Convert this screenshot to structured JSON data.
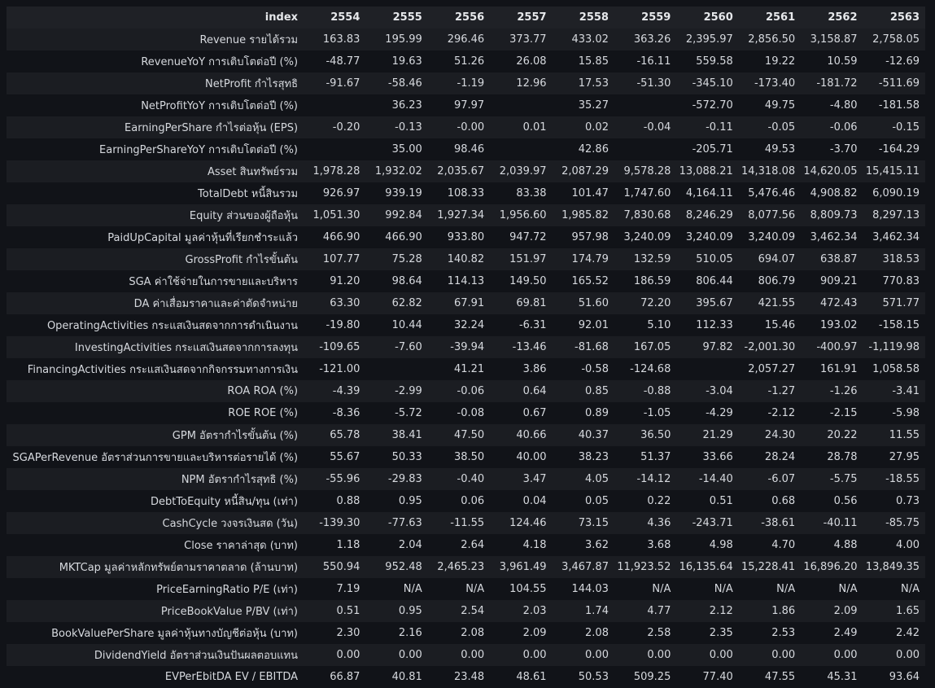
{
  "header": [
    "index",
    "2554",
    "2555",
    "2556",
    "2557",
    "2558",
    "2559",
    "2560",
    "2561",
    "2562",
    "2563"
  ],
  "rows": [
    {
      "label": "Revenue รายได้รวม",
      "values": [
        "163.83",
        "195.99",
        "296.46",
        "373.77",
        "433.02",
        "363.26",
        "2,395.97",
        "2,856.50",
        "3,158.87",
        "2,758.05"
      ]
    },
    {
      "label": "RevenueYoY การเติบโตต่อปี (%)",
      "values": [
        "-48.77",
        "19.63",
        "51.26",
        "26.08",
        "15.85",
        "-16.11",
        "559.58",
        "19.22",
        "10.59",
        "-12.69"
      ]
    },
    {
      "label": "NetProfit กำไรสุทธิ",
      "values": [
        "-91.67",
        "-58.46",
        "-1.19",
        "12.96",
        "17.53",
        "-51.30",
        "-345.10",
        "-173.40",
        "-181.72",
        "-511.69"
      ]
    },
    {
      "label": "NetProfitYoY การเติบโตต่อปี (%)",
      "values": [
        "",
        "36.23",
        "97.97",
        "",
        "35.27",
        "",
        "-572.70",
        "49.75",
        "-4.80",
        "-181.58"
      ]
    },
    {
      "label": "EarningPerShare กำไรต่อหุ้น (EPS)",
      "values": [
        "-0.20",
        "-0.13",
        "-0.00",
        "0.01",
        "0.02",
        "-0.04",
        "-0.11",
        "-0.05",
        "-0.06",
        "-0.15"
      ]
    },
    {
      "label": "EarningPerShareYoY การเติบโตต่อปี (%)",
      "values": [
        "",
        "35.00",
        "98.46",
        "",
        "42.86",
        "",
        "-205.71",
        "49.53",
        "-3.70",
        "-164.29"
      ]
    },
    {
      "label": "Asset สินทรัพย์รวม",
      "values": [
        "1,978.28",
        "1,932.02",
        "2,035.67",
        "2,039.97",
        "2,087.29",
        "9,578.28",
        "13,088.21",
        "14,318.08",
        "14,620.05",
        "15,415.11"
      ]
    },
    {
      "label": "TotalDebt หนี้สินรวม",
      "values": [
        "926.97",
        "939.19",
        "108.33",
        "83.38",
        "101.47",
        "1,747.60",
        "4,164.11",
        "5,476.46",
        "4,908.82",
        "6,090.19"
      ]
    },
    {
      "label": "Equity ส่วนของผู้ถือหุ้น",
      "values": [
        "1,051.30",
        "992.84",
        "1,927.34",
        "1,956.60",
        "1,985.82",
        "7,830.68",
        "8,246.29",
        "8,077.56",
        "8,809.73",
        "8,297.13"
      ]
    },
    {
      "label": "PaidUpCapital มูลค่าหุ้นที่เรียกชำระแล้ว",
      "values": [
        "466.90",
        "466.90",
        "933.80",
        "947.72",
        "957.98",
        "3,240.09",
        "3,240.09",
        "3,240.09",
        "3,462.34",
        "3,462.34"
      ]
    },
    {
      "label": "GrossProfit กำไรขั้นต้น",
      "values": [
        "107.77",
        "75.28",
        "140.82",
        "151.97",
        "174.79",
        "132.59",
        "510.05",
        "694.07",
        "638.87",
        "318.53"
      ]
    },
    {
      "label": "SGA ค่าใช้จ่ายในการขายและบริหาร",
      "values": [
        "91.20",
        "98.64",
        "114.13",
        "149.50",
        "165.52",
        "186.59",
        "806.44",
        "806.79",
        "909.21",
        "770.83"
      ]
    },
    {
      "label": "DA ค่าเสื่อมราคาและค่าตัดจำหน่าย",
      "values": [
        "63.30",
        "62.82",
        "67.91",
        "69.81",
        "51.60",
        "72.20",
        "395.67",
        "421.55",
        "472.43",
        "571.77"
      ]
    },
    {
      "label": "OperatingActivities กระแสเงินสดจากการดำเนินงาน",
      "values": [
        "-19.80",
        "10.44",
        "32.24",
        "-6.31",
        "92.01",
        "5.10",
        "112.33",
        "15.46",
        "193.02",
        "-158.15"
      ]
    },
    {
      "label": "InvestingActivities กระแสเงินสดจากการลงทุน",
      "values": [
        "-109.65",
        "-7.60",
        "-39.94",
        "-13.46",
        "-81.68",
        "167.05",
        "97.82",
        "-2,001.30",
        "-400.97",
        "-1,119.98"
      ]
    },
    {
      "label": "FinancingActivities กระแสเงินสดจากกิจกรรมทางการเงิน",
      "values": [
        "-121.00",
        "",
        "41.21",
        "3.86",
        "-0.58",
        "-124.68",
        "",
        "2,057.27",
        "161.91",
        "1,058.58"
      ]
    },
    {
      "label": "ROA ROA (%)",
      "values": [
        "-4.39",
        "-2.99",
        "-0.06",
        "0.64",
        "0.85",
        "-0.88",
        "-3.04",
        "-1.27",
        "-1.26",
        "-3.41"
      ]
    },
    {
      "label": "ROE ROE (%)",
      "values": [
        "-8.36",
        "-5.72",
        "-0.08",
        "0.67",
        "0.89",
        "-1.05",
        "-4.29",
        "-2.12",
        "-2.15",
        "-5.98"
      ]
    },
    {
      "label": "GPM อัตรากำไรขั้นต้น (%)",
      "values": [
        "65.78",
        "38.41",
        "47.50",
        "40.66",
        "40.37",
        "36.50",
        "21.29",
        "24.30",
        "20.22",
        "11.55"
      ]
    },
    {
      "label": "SGAPerRevenue อัตราส่วนการขายและบริหารต่อรายได้ (%)",
      "values": [
        "55.67",
        "50.33",
        "38.50",
        "40.00",
        "38.23",
        "51.37",
        "33.66",
        "28.24",
        "28.78",
        "27.95"
      ]
    },
    {
      "label": "NPM อัตรากำไรสุทธิ (%)",
      "values": [
        "-55.96",
        "-29.83",
        "-0.40",
        "3.47",
        "4.05",
        "-14.12",
        "-14.40",
        "-6.07",
        "-5.75",
        "-18.55"
      ]
    },
    {
      "label": "DebtToEquity หนี้สิน/ทุน (เท่า)",
      "values": [
        "0.88",
        "0.95",
        "0.06",
        "0.04",
        "0.05",
        "0.22",
        "0.51",
        "0.68",
        "0.56",
        "0.73"
      ]
    },
    {
      "label": "CashCycle วงจรเงินสด (วัน)",
      "values": [
        "-139.30",
        "-77.63",
        "-11.55",
        "124.46",
        "73.15",
        "4.36",
        "-243.71",
        "-38.61",
        "-40.11",
        "-85.75"
      ]
    },
    {
      "label": "Close ราคาล่าสุด (บาท)",
      "values": [
        "1.18",
        "2.04",
        "2.64",
        "4.18",
        "3.62",
        "3.68",
        "4.98",
        "4.70",
        "4.88",
        "4.00"
      ]
    },
    {
      "label": "MKTCap มูลค่าหลักทรัพย์ตามราคาตลาด (ล้านบาท)",
      "values": [
        "550.94",
        "952.48",
        "2,465.23",
        "3,961.49",
        "3,467.87",
        "11,923.52",
        "16,135.64",
        "15,228.41",
        "16,896.20",
        "13,849.35"
      ]
    },
    {
      "label": "PriceEarningRatio P/E (เท่า)",
      "values": [
        "7.19",
        "N/A",
        "N/A",
        "104.55",
        "144.03",
        "N/A",
        "N/A",
        "N/A",
        "N/A",
        "N/A"
      ]
    },
    {
      "label": "PriceBookValue P/BV (เท่า)",
      "values": [
        "0.51",
        "0.95",
        "2.54",
        "2.03",
        "1.74",
        "4.77",
        "2.12",
        "1.86",
        "2.09",
        "1.65"
      ]
    },
    {
      "label": "BookValuePerShare มูลค่าหุ้นทางบัญชีต่อหุ้น (บาท)",
      "values": [
        "2.30",
        "2.16",
        "2.08",
        "2.09",
        "2.08",
        "2.58",
        "2.35",
        "2.53",
        "2.49",
        "2.42"
      ]
    },
    {
      "label": "DividendYield อัตราส่วนเงินปันผลตอบแทน",
      "values": [
        "0.00",
        "0.00",
        "0.00",
        "0.00",
        "0.00",
        "0.00",
        "0.00",
        "0.00",
        "0.00",
        "0.00"
      ]
    },
    {
      "label": "EVPerEbitDA EV / EBITDA",
      "values": [
        "66.87",
        "40.81",
        "23.48",
        "48.61",
        "50.53",
        "509.25",
        "77.40",
        "47.55",
        "45.31",
        "93.64"
      ]
    }
  ]
}
